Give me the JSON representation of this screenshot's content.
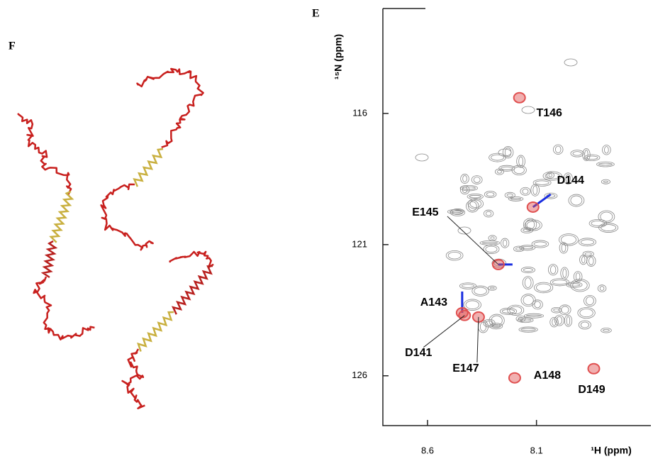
{
  "figure": {
    "left_label": "F"
  },
  "chart_data": {
    "type": "scatter",
    "panel_label": "E",
    "xlabel": "¹H (ppm)",
    "ylabel": "¹⁵N (ppm)",
    "point_labels": [
      "T146",
      "D144",
      "E145",
      "A143",
      "D141",
      "E147",
      "A148",
      "D149"
    ],
    "x": [
      8.178,
      8.116,
      8.275,
      8.441,
      8.43,
      8.366,
      8.2,
      7.837
    ],
    "values": [
      115.4,
      119.57,
      121.76,
      123.6,
      123.7,
      123.76,
      126.08,
      125.73
    ],
    "color": "#e05050",
    "xlim": [
      8.805,
      7.575
    ],
    "ylim": [
      112,
      127.9
    ],
    "xticks": [
      8.6,
      8.1
    ],
    "yticks": [
      116,
      121,
      126
    ]
  }
}
